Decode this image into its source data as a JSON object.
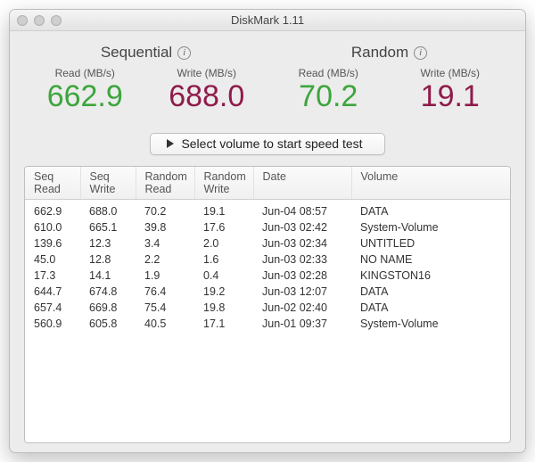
{
  "window": {
    "title": "DiskMark 1.11"
  },
  "stats": {
    "sequential": {
      "heading": "Sequential",
      "read": {
        "label": "Read (MB/s)",
        "value": "662.9",
        "color": "#3da53d"
      },
      "write": {
        "label": "Write (MB/s)",
        "value": "688.0",
        "color": "#8f1b4a"
      }
    },
    "random": {
      "heading": "Random",
      "read": {
        "label": "Read (MB/s)",
        "value": "70.2",
        "color": "#3da53d"
      },
      "write": {
        "label": "Write (MB/s)",
        "value": "19.1",
        "color": "#8f1b4a"
      }
    }
  },
  "button": {
    "label": "Select volume to start speed test"
  },
  "table": {
    "columns": [
      {
        "l1": "Seq",
        "l2": "Read"
      },
      {
        "l1": "Seq",
        "l2": "Write"
      },
      {
        "l1": "Random",
        "l2": "Read"
      },
      {
        "l1": "Random",
        "l2": "Write"
      },
      {
        "l1": "Date",
        "l2": ""
      },
      {
        "l1": "Volume",
        "l2": ""
      }
    ],
    "rows": [
      [
        "662.9",
        "688.0",
        "70.2",
        "19.1",
        "Jun-04 08:57",
        "DATA"
      ],
      [
        "610.0",
        "665.1",
        "39.8",
        "17.6",
        "Jun-03 02:42",
        "System-Volume"
      ],
      [
        "139.6",
        "12.3",
        "3.4",
        "2.0",
        "Jun-03 02:34",
        "UNTITLED"
      ],
      [
        "45.0",
        "12.8",
        "2.2",
        "1.6",
        "Jun-03 02:33",
        "NO NAME"
      ],
      [
        "17.3",
        "14.1",
        "1.9",
        "0.4",
        "Jun-03 02:28",
        "KINGSTON16"
      ],
      [
        "644.7",
        "674.8",
        "76.4",
        "19.2",
        "Jun-03 12:07",
        "DATA"
      ],
      [
        "657.4",
        "669.8",
        "75.4",
        "19.8",
        "Jun-02 02:40",
        "DATA"
      ],
      [
        "560.9",
        "605.8",
        "40.5",
        "17.1",
        "Jun-01 09:37",
        "System-Volume"
      ]
    ]
  },
  "styling": {
    "window_bg": "#ececec",
    "border_color": "#bfbfbf",
    "text_color": "#333",
    "value_font_size_pt": 26,
    "header_font_size_pt": 13
  }
}
